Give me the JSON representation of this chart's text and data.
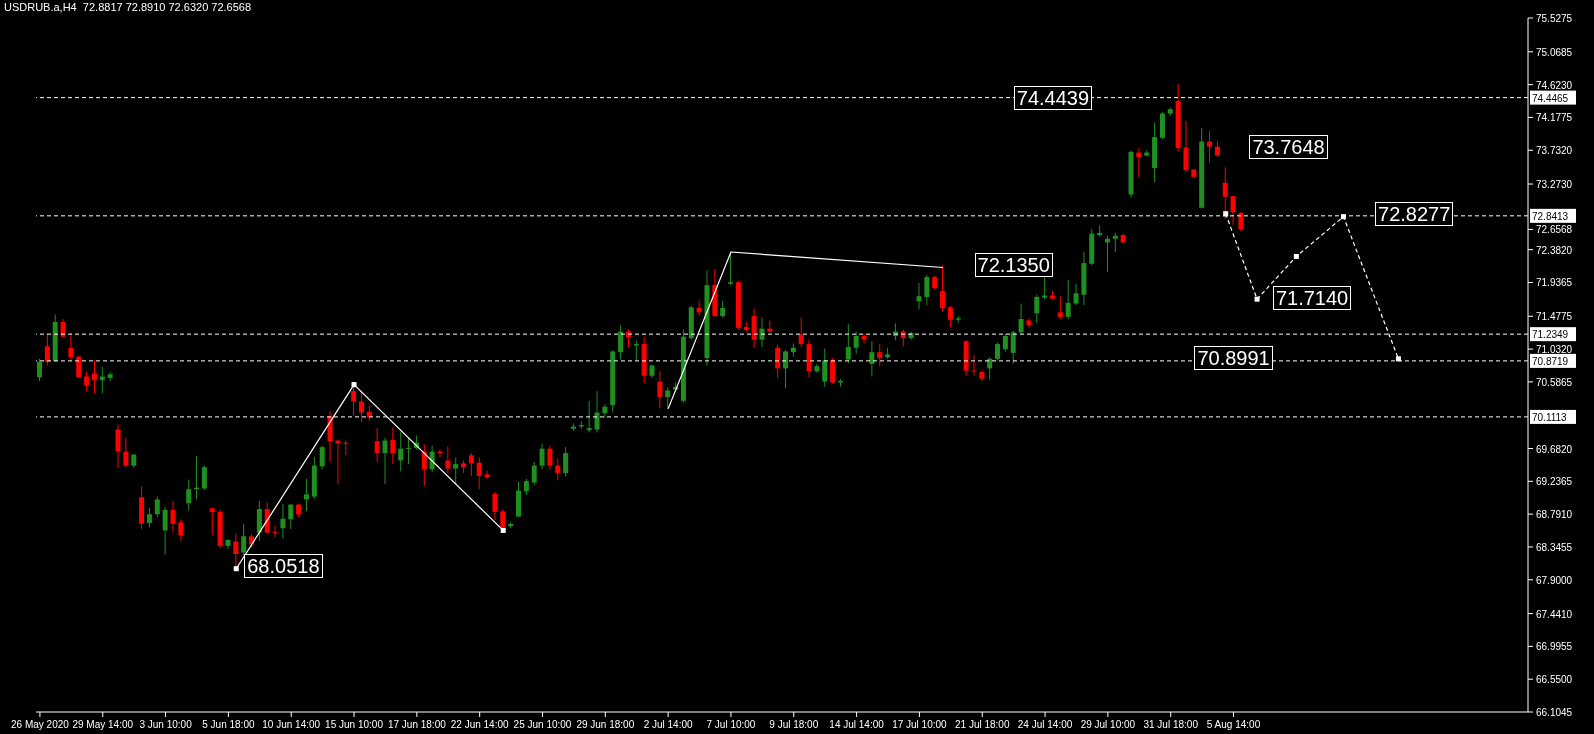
{
  "chart_data": {
    "type": "candlestick",
    "title": "USDRUB.a,H4  72.8817 72.8910 72.6320 72.6568",
    "categories": [
      "26 May 2020",
      null,
      null,
      null,
      null,
      null,
      null,
      null,
      "29 May 14:00",
      null,
      null,
      null,
      null,
      null,
      null,
      null,
      "3 Jun 10:00",
      null,
      null,
      null,
      null,
      null,
      null,
      null,
      "5 Jun 18:00",
      null,
      null,
      null,
      null,
      null,
      null,
      null,
      "10 Jun 14:00",
      null,
      null,
      null,
      null,
      null,
      null,
      null,
      "15 Jun 10:00",
      null,
      null,
      null,
      null,
      null,
      null,
      null,
      "17 Jun 18:00",
      null,
      null,
      null,
      null,
      null,
      null,
      null,
      "22 Jun 14:00",
      null,
      null,
      null,
      null,
      null,
      null,
      null,
      "25 Jun 10:00",
      null,
      null,
      null,
      null,
      null,
      null,
      null,
      "29 Jun 18:00",
      null,
      null,
      null,
      null,
      null,
      null,
      null,
      "2 Jul 14:00",
      null,
      null,
      null,
      null,
      null,
      null,
      null,
      "7 Jul 10:00",
      null,
      null,
      null,
      null,
      null,
      null,
      null,
      "9 Jul 18:00",
      null,
      null,
      null,
      null,
      null,
      null,
      null,
      "14 Jul 14:00",
      null,
      null,
      null,
      null,
      null,
      null,
      null,
      "17 Jul 10:00",
      null,
      null,
      null,
      null,
      null,
      null,
      null,
      "21 Jul 18:00",
      null,
      null,
      null,
      null,
      null,
      null,
      null,
      "24 Jul 14:00",
      null,
      null,
      null,
      null,
      null,
      null,
      null,
      "29 Jul 10:00",
      null,
      null,
      null,
      null,
      null,
      null,
      null,
      "31 Jul 18:00",
      null,
      null,
      null,
      null,
      null,
      null,
      null,
      "5 Aug 14:00",
      null,
      null,
      null,
      null,
      null,
      null,
      null,
      null,
      null,
      null,
      null,
      null,
      null,
      null,
      null,
      null,
      null,
      null,
      null,
      null,
      null,
      null,
      null,
      null,
      null,
      null,
      null,
      null,
      null,
      null,
      null,
      null,
      null,
      null,
      null,
      null,
      null
    ],
    "ohlc": [
      [
        70.65,
        70.9,
        70.6,
        70.86
      ],
      [
        71.07,
        71.24,
        70.81,
        70.86
      ],
      [
        70.87,
        71.5,
        70.86,
        71.4
      ],
      [
        71.4,
        71.44,
        71.2,
        71.2
      ],
      [
        71.05,
        71.24,
        70.88,
        70.92
      ],
      [
        70.93,
        70.94,
        70.65,
        70.65
      ],
      [
        70.66,
        70.72,
        70.46,
        70.54
      ],
      [
        70.7,
        70.88,
        70.43,
        70.61
      ],
      [
        70.61,
        70.79,
        70.43,
        70.66
      ],
      [
        70.64,
        70.72,
        70.6,
        70.69
      ],
      [
        69.94,
        70.01,
        69.42,
        69.64
      ],
      [
        69.64,
        69.83,
        69.42,
        69.45
      ],
      [
        69.45,
        69.6,
        69.42,
        69.6
      ],
      [
        69.02,
        69.17,
        68.59,
        68.66
      ],
      [
        68.67,
        68.88,
        68.61,
        68.79
      ],
      [
        68.79,
        69.03,
        68.75,
        68.99
      ],
      [
        68.57,
        68.89,
        68.24,
        68.85
      ],
      [
        68.85,
        68.97,
        68.54,
        68.66
      ],
      [
        68.68,
        68.72,
        68.43,
        68.5
      ],
      [
        68.94,
        69.26,
        68.84,
        69.13
      ],
      [
        69.13,
        69.58,
        68.99,
        69.15
      ],
      [
        69.14,
        69.45,
        69.12,
        69.43
      ],
      [
        68.87,
        68.88,
        68.5,
        68.82
      ],
      [
        68.82,
        68.85,
        68.33,
        68.36
      ],
      [
        68.36,
        68.45,
        68.32,
        68.44
      ],
      [
        68.42,
        68.52,
        68.07,
        68.25
      ],
      [
        68.27,
        68.66,
        68.23,
        68.49
      ],
      [
        68.49,
        68.52,
        68.34,
        68.38
      ],
      [
        68.54,
        68.97,
        68.43,
        68.86
      ],
      [
        68.86,
        68.95,
        68.52,
        68.54
      ],
      [
        68.55,
        68.63,
        68.48,
        68.54
      ],
      [
        68.6,
        68.93,
        68.46,
        68.73
      ],
      [
        68.72,
        68.93,
        68.59,
        68.92
      ],
      [
        68.92,
        68.93,
        68.75,
        68.79
      ],
      [
        68.99,
        69.27,
        68.83,
        69.06
      ],
      [
        69.03,
        69.57,
        69.0,
        69.45
      ],
      [
        69.44,
        69.72,
        69.4,
        69.7
      ],
      [
        70.12,
        70.19,
        69.5,
        69.78
      ],
      [
        69.79,
        69.8,
        69.2,
        69.75
      ],
      [
        69.76,
        69.79,
        69.59,
        69.75
      ],
      [
        70.46,
        70.56,
        70.13,
        70.32
      ],
      [
        70.32,
        70.47,
        70.04,
        70.17
      ],
      [
        70.18,
        70.26,
        70.06,
        70.11
      ],
      [
        69.78,
        69.96,
        69.5,
        69.62
      ],
      [
        69.62,
        69.83,
        69.2,
        69.79
      ],
      [
        69.8,
        69.97,
        69.47,
        69.62
      ],
      [
        69.52,
        69.91,
        69.37,
        69.68
      ],
      [
        69.68,
        69.83,
        69.47,
        69.69
      ],
      [
        69.69,
        69.86,
        69.67,
        69.76
      ],
      [
        69.64,
        69.74,
        69.17,
        69.4
      ],
      [
        69.4,
        69.72,
        69.36,
        69.64
      ],
      [
        69.64,
        69.67,
        69.56,
        69.62
      ],
      [
        69.52,
        69.71,
        69.35,
        69.41
      ],
      [
        69.41,
        69.56,
        69.2,
        69.47
      ],
      [
        69.48,
        69.52,
        69.35,
        69.43
      ],
      [
        69.59,
        69.62,
        69.31,
        69.48
      ],
      [
        69.49,
        69.56,
        69.13,
        69.31
      ],
      [
        69.33,
        69.38,
        69.27,
        69.29
      ],
      [
        69.07,
        69.09,
        68.71,
        68.82
      ],
      [
        68.83,
        68.86,
        68.57,
        68.61
      ],
      [
        68.63,
        68.68,
        68.6,
        68.66
      ],
      [
        68.76,
        69.23,
        68.75,
        69.11
      ],
      [
        69.1,
        69.27,
        69.05,
        69.24
      ],
      [
        69.22,
        69.5,
        69.18,
        69.45
      ],
      [
        69.45,
        69.75,
        69.4,
        69.68
      ],
      [
        69.68,
        69.72,
        69.4,
        69.45
      ],
      [
        69.45,
        69.55,
        69.25,
        69.35
      ],
      [
        69.35,
        69.7,
        69.3,
        69.62
      ],
      [
        69.95,
        70.02,
        69.92,
        69.98
      ],
      [
        69.98,
        70.05,
        69.95,
        70.0
      ],
      [
        69.93,
        70.33,
        69.9,
        69.96
      ],
      [
        69.94,
        70.46,
        69.9,
        70.17
      ],
      [
        70.16,
        70.28,
        70.1,
        70.25
      ],
      [
        70.27,
        71.02,
        70.17,
        71.0
      ],
      [
        70.99,
        71.35,
        70.89,
        71.27
      ],
      [
        71.27,
        71.3,
        71.05,
        71.19
      ],
      [
        71.08,
        71.15,
        70.88,
        71.1
      ],
      [
        71.1,
        71.2,
        70.57,
        70.67
      ],
      [
        70.67,
        70.82,
        70.64,
        70.81
      ],
      [
        70.59,
        70.73,
        70.23,
        70.38
      ],
      [
        70.38,
        70.51,
        70.22,
        70.47
      ],
      [
        70.48,
        70.58,
        70.45,
        70.52
      ],
      [
        70.33,
        71.3,
        70.3,
        71.2
      ],
      [
        71.18,
        71.62,
        71.16,
        71.6
      ],
      [
        71.59,
        71.69,
        71.49,
        71.53
      ],
      [
        70.91,
        72.1,
        70.81,
        71.9
      ],
      [
        71.9,
        72.12,
        71.47,
        71.48
      ],
      [
        71.48,
        71.69,
        71.46,
        71.59
      ],
      [
        71.92,
        72.33,
        71.9,
        71.94
      ],
      [
        71.94,
        71.96,
        71.3,
        71.32
      ],
      [
        71.33,
        71.4,
        71.26,
        71.29
      ],
      [
        71.48,
        71.58,
        71.05,
        71.16
      ],
      [
        71.16,
        71.46,
        71.06,
        71.31
      ],
      [
        71.31,
        71.42,
        71.25,
        71.27
      ],
      [
        71.05,
        71.09,
        70.64,
        70.77
      ],
      [
        70.77,
        71.02,
        70.5,
        71.0
      ],
      [
        70.99,
        71.11,
        70.93,
        71.05
      ],
      [
        71.23,
        71.46,
        71.06,
        71.1
      ],
      [
        71.1,
        71.16,
        70.65,
        70.73
      ],
      [
        70.73,
        70.83,
        70.71,
        70.8
      ],
      [
        70.59,
        71.04,
        70.52,
        70.88
      ],
      [
        70.88,
        70.91,
        70.56,
        70.58
      ],
      [
        70.58,
        70.63,
        70.52,
        70.6
      ],
      [
        70.89,
        71.37,
        70.84,
        71.06
      ],
      [
        71.05,
        71.27,
        70.97,
        71.21
      ],
      [
        71.21,
        71.24,
        71.11,
        71.16
      ],
      [
        70.83,
        71.14,
        70.66,
        70.99
      ],
      [
        70.99,
        71.1,
        70.8,
        70.91
      ],
      [
        70.92,
        71.05,
        70.9,
        70.96
      ],
      [
        71.21,
        71.38,
        71.15,
        71.27
      ],
      [
        71.27,
        71.3,
        71.07,
        71.18
      ],
      [
        71.18,
        71.27,
        71.16,
        71.25
      ],
      [
        71.68,
        71.93,
        71.57,
        71.75
      ],
      [
        71.74,
        72.04,
        71.63,
        72.01
      ],
      [
        72.01,
        72.03,
        71.84,
        71.86
      ],
      [
        71.82,
        72.17,
        71.54,
        71.59
      ],
      [
        71.6,
        71.62,
        71.33,
        71.43
      ],
      [
        71.43,
        71.48,
        71.39,
        71.45
      ],
      [
        71.14,
        71.15,
        70.67,
        70.74
      ],
      [
        70.74,
        70.95,
        70.67,
        70.73
      ],
      [
        70.72,
        70.74,
        70.6,
        70.63
      ],
      [
        70.77,
        70.92,
        70.62,
        70.9
      ],
      [
        70.9,
        71.12,
        70.88,
        71.1
      ],
      [
        71.03,
        71.24,
        71.0,
        71.21
      ],
      [
        70.98,
        71.28,
        70.83,
        71.26
      ],
      [
        71.26,
        71.65,
        71.24,
        71.44
      ],
      [
        71.42,
        71.45,
        71.33,
        71.36
      ],
      [
        71.52,
        71.77,
        71.39,
        71.74
      ],
      [
        71.73,
        72.01,
        71.71,
        71.76
      ],
      [
        71.76,
        71.82,
        71.7,
        71.72
      ],
      [
        71.53,
        71.75,
        71.44,
        71.47
      ],
      [
        71.47,
        71.97,
        71.44,
        71.66
      ],
      [
        71.65,
        71.92,
        71.63,
        71.79
      ],
      [
        71.77,
        72.35,
        71.63,
        72.2
      ],
      [
        72.19,
        72.66,
        72.17,
        72.6
      ],
      [
        72.58,
        72.71,
        72.56,
        72.61
      ],
      [
        72.48,
        72.57,
        72.08,
        72.53
      ],
      [
        72.53,
        72.61,
        72.35,
        72.57
      ],
      [
        72.58,
        72.6,
        72.46,
        72.48
      ],
      [
        73.13,
        73.73,
        73.09,
        73.71
      ],
      [
        73.7,
        73.76,
        73.36,
        73.64
      ],
      [
        73.66,
        73.73,
        73.65,
        73.7
      ],
      [
        73.49,
        74.11,
        73.3,
        73.91
      ],
      [
        73.9,
        74.25,
        73.88,
        74.23
      ],
      [
        74.23,
        74.31,
        74.2,
        74.29
      ],
      [
        74.4,
        74.63,
        73.71,
        73.76
      ],
      [
        73.77,
        74.13,
        73.44,
        73.46
      ],
      [
        73.47,
        73.47,
        73.35,
        73.37
      ],
      [
        72.95,
        74.03,
        72.94,
        73.85
      ],
      [
        73.85,
        73.99,
        73.56,
        73.78
      ],
      [
        73.78,
        73.86,
        73.64,
        73.66
      ],
      [
        73.29,
        73.5,
        72.8,
        73.1
      ],
      [
        73.11,
        73.11,
        72.72,
        72.89
      ],
      [
        72.8817,
        72.891,
        72.632,
        72.6568
      ],
      null,
      null,
      null,
      null,
      null,
      null,
      null,
      null,
      null,
      null,
      null,
      null,
      null,
      null,
      null,
      null,
      null,
      null,
      null,
      null,
      null,
      null,
      null,
      null,
      null,
      null,
      null,
      null,
      null,
      null,
      null,
      null,
      null,
      null,
      null,
      null
    ],
    "series": [
      {
        "type": "line",
        "color": "#ffffff",
        "line_style": "solid",
        "marker": "square",
        "values": [
          null,
          null,
          null,
          null,
          null,
          null,
          null,
          null,
          null,
          null,
          null,
          null,
          null,
          null,
          null,
          null,
          null,
          null,
          null,
          null,
          null,
          null,
          null,
          null,
          null,
          68.05,
          null,
          null,
          null,
          null,
          null,
          null,
          null,
          null,
          null,
          null,
          null,
          null,
          null,
          null,
          70.55,
          null,
          null,
          null,
          null,
          null,
          null,
          null,
          null,
          null,
          null,
          null,
          null,
          null,
          null,
          null,
          null,
          null,
          null,
          68.57,
          null,
          null,
          null,
          null,
          null,
          null,
          null,
          null,
          null,
          null,
          null,
          null,
          null,
          null,
          null,
          null,
          null,
          null,
          null,
          null,
          null,
          null,
          null,
          null,
          null,
          null,
          null,
          null,
          null,
          null,
          null,
          null,
          null,
          null,
          null,
          null,
          null,
          null,
          null,
          null,
          null,
          null,
          null,
          null,
          null,
          null,
          null,
          null,
          null,
          null,
          null,
          null,
          null,
          null,
          null,
          null,
          null,
          null,
          null,
          null,
          null,
          null,
          null,
          null,
          null,
          null,
          null,
          null,
          null,
          null,
          null,
          null,
          null,
          null,
          null,
          null,
          null,
          null,
          null,
          null,
          null,
          null,
          null,
          null,
          null,
          null,
          null,
          null,
          null,
          null,
          null,
          null,
          null,
          null,
          null,
          null,
          null,
          null,
          null,
          null,
          null,
          null,
          null,
          null,
          null,
          null,
          null,
          null,
          null,
          null,
          null,
          null,
          null,
          null,
          null,
          null,
          null,
          null,
          null,
          null,
          null,
          null,
          null,
          null,
          null,
          null,
          null,
          null,
          null,
          null
        ]
      },
      {
        "type": "line",
        "color": "#ffffff",
        "line_style": "solid",
        "marker": "none",
        "values": [
          null,
          null,
          null,
          null,
          null,
          null,
          null,
          null,
          null,
          null,
          null,
          null,
          null,
          null,
          null,
          null,
          null,
          null,
          null,
          null,
          null,
          null,
          null,
          null,
          null,
          null,
          null,
          null,
          null,
          null,
          null,
          null,
          null,
          null,
          null,
          null,
          null,
          null,
          null,
          null,
          null,
          null,
          null,
          null,
          null,
          null,
          null,
          null,
          null,
          null,
          null,
          null,
          null,
          null,
          null,
          null,
          null,
          null,
          null,
          null,
          null,
          null,
          null,
          null,
          null,
          null,
          null,
          null,
          null,
          null,
          null,
          null,
          null,
          null,
          null,
          null,
          null,
          null,
          null,
          null,
          70.22,
          null,
          null,
          null,
          null,
          null,
          null,
          null,
          72.35,
          null,
          null,
          null,
          null,
          null,
          null,
          null,
          null,
          null,
          null,
          null,
          null,
          null,
          null,
          null,
          null,
          null,
          null,
          null,
          null,
          null,
          null,
          null,
          null,
          null,
          null,
          72.14,
          null,
          null,
          null,
          null,
          null,
          null,
          null,
          null,
          null,
          null,
          null,
          null,
          null,
          null,
          null,
          null,
          null,
          null,
          null,
          null,
          null,
          null,
          null,
          null,
          null,
          null,
          null,
          null,
          null,
          null,
          null,
          null,
          null,
          null,
          null,
          null,
          null,
          null,
          null,
          null,
          null,
          null,
          null,
          null,
          null,
          null,
          null,
          null,
          null,
          null,
          null,
          null,
          null,
          null,
          null,
          null,
          null,
          null,
          null,
          null,
          null,
          null,
          null,
          null,
          null,
          null,
          null,
          null,
          null,
          null,
          null,
          null,
          null,
          null
        ]
      },
      {
        "type": "line",
        "color": "#ffffff",
        "line_style": "dashed",
        "marker": "square",
        "values": [
          null,
          null,
          null,
          null,
          null,
          null,
          null,
          null,
          null,
          null,
          null,
          null,
          null,
          null,
          null,
          null,
          null,
          null,
          null,
          null,
          null,
          null,
          null,
          null,
          null,
          null,
          null,
          null,
          null,
          null,
          null,
          null,
          null,
          null,
          null,
          null,
          null,
          null,
          null,
          null,
          null,
          null,
          null,
          null,
          null,
          null,
          null,
          null,
          null,
          null,
          null,
          null,
          null,
          null,
          null,
          null,
          null,
          null,
          null,
          null,
          null,
          null,
          null,
          null,
          null,
          null,
          null,
          null,
          null,
          null,
          null,
          null,
          null,
          null,
          null,
          null,
          null,
          null,
          null,
          null,
          null,
          null,
          null,
          null,
          null,
          null,
          null,
          null,
          null,
          null,
          null,
          null,
          null,
          null,
          null,
          null,
          null,
          null,
          null,
          null,
          null,
          null,
          null,
          null,
          null,
          null,
          null,
          null,
          null,
          null,
          null,
          null,
          null,
          null,
          null,
          null,
          null,
          null,
          null,
          null,
          null,
          null,
          null,
          null,
          null,
          null,
          null,
          null,
          null,
          null,
          null,
          null,
          null,
          null,
          null,
          null,
          null,
          null,
          null,
          null,
          null,
          null,
          null,
          null,
          null,
          null,
          null,
          null,
          null,
          null,
          null,
          72.87,
          null,
          null,
          null,
          71.71,
          null,
          null,
          null,
          null,
          72.29,
          null,
          null,
          null,
          null,
          null,
          72.83,
          null,
          null,
          null,
          null,
          null,
          null,
          70.9,
          null,
          null,
          null,
          null,
          null,
          null,
          null,
          null,
          null,
          null,
          null,
          null,
          null,
          null,
          null,
          null
        ]
      }
    ],
    "ylim": [
      66.1045,
      75.5275
    ],
    "yticks": [
      66.1045,
      {
        "value": 66.55,
        "label": "66.5500"
      },
      66.9955,
      {
        "value": 67.441,
        "label": "67.4410"
      },
      {
        "value": 67.9,
        "label": "67.9000"
      },
      68.3455,
      {
        "value": 68.791,
        "label": "68.7910"
      },
      69.2365,
      {
        "value": 69.682,
        "label": "69.6820"
      },
      70.5865,
      {
        "value": 71.032,
        "label": "71.0320"
      },
      71.4775,
      71.9365,
      {
        "value": 72.382,
        "label": "72.3820"
      },
      72.6568,
      {
        "value": 73.273,
        "label": "73.2730"
      },
      {
        "value": 73.732,
        "label": "73.7320"
      },
      74.1775,
      {
        "value": 74.623,
        "label": "74.6230"
      },
      75.0685,
      75.5275
    ],
    "ref_lines": [
      {
        "axis": "y",
        "value": 74.4465,
        "label": "74.4465",
        "color": "#ffffff",
        "line_style": "dashed"
      },
      {
        "axis": "y",
        "value": 72.8413,
        "label": "72.8413",
        "color": "#ffffff",
        "line_style": "dashed"
      },
      {
        "axis": "y",
        "value": 71.2349,
        "label": "71.2349",
        "color": "#ffffff",
        "line_style": "dashed"
      },
      {
        "axis": "y",
        "value": 70.8719,
        "label": "70.8719",
        "color": "#ffffff",
        "line_style": "dashed"
      },
      {
        "axis": "y",
        "value": 70.1113,
        "label": "70.1113",
        "color": "#ffffff",
        "line_style": "dashed"
      }
    ],
    "annotations": [
      "74.4439",
      "73.7648",
      "72.8277",
      "72.1350",
      "71.7140",
      "70.8991",
      "68.0518"
    ],
    "grid": false,
    "legend": false
  }
}
